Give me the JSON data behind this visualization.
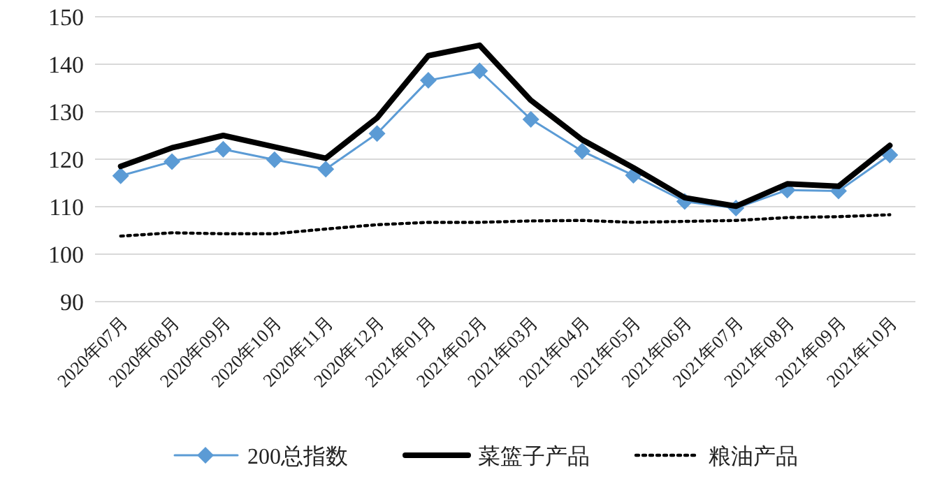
{
  "chart_data": {
    "type": "line",
    "categories": [
      "2020年07月",
      "2020年08月",
      "2020年09月",
      "2020年10月",
      "2020年11月",
      "2020年12月",
      "2021年01月",
      "2021年02月",
      "2021年03月",
      "2021年04月",
      "2021年05月",
      "2021年06月",
      "2021年07月",
      "2021年08月",
      "2021年09月",
      "2021年10月"
    ],
    "series": [
      {
        "name": "200总指数",
        "color": "#5b9bd5",
        "marker": "diamond",
        "line_style": "solid",
        "values": [
          116.5,
          119.5,
          122.1,
          119.9,
          117.9,
          125.4,
          136.6,
          138.6,
          128.4,
          121.7,
          116.6,
          111.1,
          109.7,
          113.5,
          113.3,
          120.9
        ]
      },
      {
        "name": "菜篮子产品",
        "color": "#000000",
        "marker": "none",
        "line_style": "solid",
        "values": [
          118.5,
          122.4,
          125.0,
          122.6,
          120.2,
          128.7,
          141.8,
          144.0,
          132.4,
          124.1,
          118.2,
          111.9,
          110.1,
          114.8,
          114.3,
          122.9
        ]
      },
      {
        "name": "粮油产品",
        "color": "#000000",
        "marker": "none",
        "line_style": "dotted",
        "values": [
          103.8,
          104.5,
          104.3,
          104.3,
          105.3,
          106.2,
          106.7,
          106.7,
          107.0,
          107.1,
          106.7,
          106.9,
          107.1,
          107.7,
          107.9,
          108.3
        ]
      }
    ],
    "ylim": [
      90,
      150
    ],
    "yticks": [
      90,
      100,
      110,
      120,
      130,
      140,
      150
    ],
    "grid": "y",
    "legend": "bottom"
  }
}
